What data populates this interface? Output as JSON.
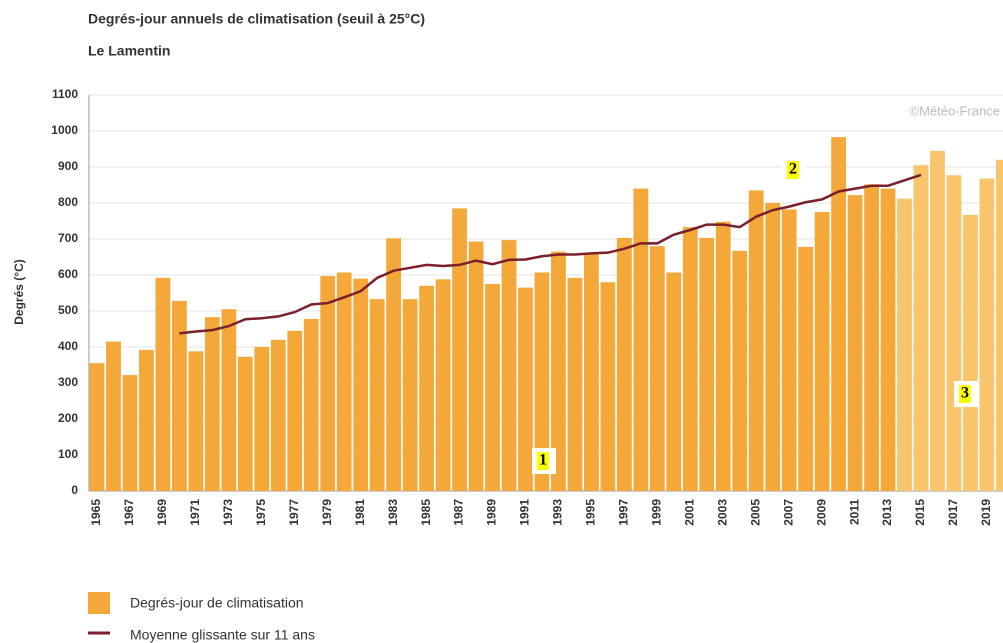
{
  "chart_data": {
    "type": "bar",
    "title": "Degrés-jour annuels de climatisation (seuil à 25°C)",
    "subtitle": "Le Lamentin",
    "ylabel": "Degrés (°C)",
    "credit": "©Météo-France",
    "annotations": [
      "1",
      "2",
      "3"
    ],
    "categories": [
      "1965",
      null,
      "1967",
      null,
      "1969",
      null,
      "1971",
      null,
      "1973",
      null,
      "1975",
      null,
      "1977",
      null,
      "1979",
      null,
      "1981",
      null,
      "1983",
      null,
      "1985",
      null,
      "1987",
      null,
      "1989",
      null,
      "1991",
      null,
      "1993",
      null,
      "1995",
      null,
      "1997",
      null,
      "1999",
      null,
      "2001",
      null,
      "2003",
      null,
      "2005",
      null,
      "2007",
      null,
      "2009",
      null,
      "2011",
      null,
      "2013",
      null,
      "2015",
      null,
      "2017",
      null,
      "2019",
      null
    ],
    "series": [
      {
        "name": "Degrés-jour de climatisation",
        "type": "bar",
        "color": "#f5a83a",
        "colors": [
          "#f5a83a",
          "#f5a83a",
          "#f5a83a",
          "#f5a83a",
          "#f5a83a",
          "#f5a83a",
          "#f5a83a",
          "#f5a83a",
          "#f5a83a",
          "#f5a83a",
          "#f5a83a",
          "#f5a83a",
          "#f5a83a",
          "#f5a83a",
          "#f5a83a",
          "#f5a83a",
          "#f5a83a",
          "#f5a83a",
          "#f5a83a",
          "#f5a83a",
          "#f5a83a",
          "#f5a83a",
          "#f5a83a",
          "#f5a83a",
          "#f5a83a",
          "#f5a83a",
          "#f5a83a",
          "#f5a83a",
          "#f5a83a",
          "#f5a83a",
          "#f5a83a",
          "#f5a83a",
          "#f5a83a",
          "#f5a83a",
          "#f5a83a",
          "#f5a83a",
          "#f5a83a",
          "#f5a83a",
          "#f5a83a",
          "#f5a83a",
          "#f5a83a",
          "#f5a83a",
          "#f5a83a",
          "#f5a83a",
          "#f5a83a",
          "#f5a83a",
          "#f5a83a",
          "#f5a83a",
          "#f5a83a",
          "#f8c46c",
          "#f8c46c",
          "#f8c46c",
          "#f8c46c",
          "#f8c46c",
          "#f8c46c",
          "#f8c46c"
        ],
        "values": [
          355,
          415,
          322,
          392,
          592,
          528,
          388,
          483,
          505,
          373,
          400,
          420,
          445,
          478,
          597,
          607,
          590,
          533,
          702,
          533,
          570,
          588,
          785,
          693,
          575,
          697,
          565,
          607,
          665,
          592,
          657,
          580,
          703,
          840,
          680,
          607,
          733,
          703,
          748,
          667,
          835,
          800,
          782,
          678,
          775,
          983,
          822,
          852,
          840,
          812,
          905,
          945,
          877,
          767,
          868,
          920
        ]
      },
      {
        "name": "Moyenne glissante sur 11 ans",
        "type": "line",
        "color": "#7a1f2b",
        "values": [
          null,
          null,
          null,
          null,
          null,
          438,
          443,
          447,
          458,
          477,
          480,
          485,
          497,
          518,
          522,
          538,
          555,
          592,
          612,
          620,
          628,
          625,
          628,
          640,
          630,
          642,
          643,
          652,
          657,
          657,
          660,
          662,
          673,
          688,
          688,
          712,
          725,
          740,
          740,
          733,
          762,
          780,
          790,
          802,
          810,
          832,
          840,
          848,
          848,
          863,
          878,
          null,
          null,
          null,
          null,
          null
        ]
      }
    ],
    "ylim": [
      0,
      1100
    ],
    "yticks": [
      0,
      100,
      200,
      300,
      400,
      500,
      600,
      700,
      800,
      900,
      1000,
      1100
    ],
    "grid": true
  }
}
